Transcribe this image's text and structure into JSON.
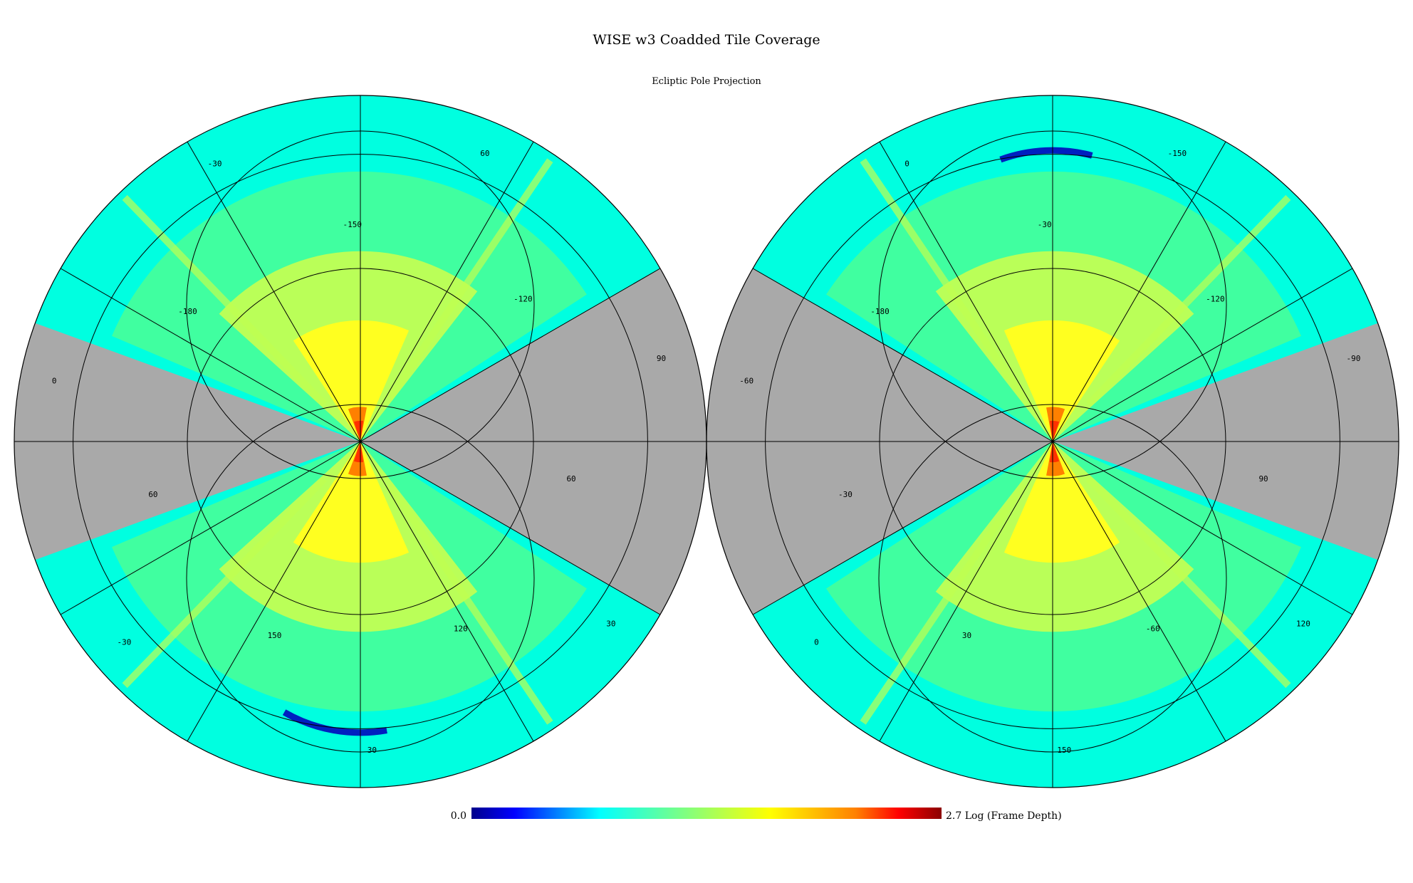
{
  "chart_data": {
    "type": "heatmap",
    "title": "WISE w3 Coadded Tile Coverage",
    "subtitle": "Ecliptic Pole Projection",
    "colorbar": {
      "min_label": "0.0",
      "max_label": "2.7 Log (Frame Depth)",
      "min": 0.0,
      "max": 2.7,
      "colors": [
        "#00008b",
        "#0000ff",
        "#0080ff",
        "#00ffff",
        "#40ffc0",
        "#80ff80",
        "#c0ff40",
        "#ffff00",
        "#ffc000",
        "#ff8000",
        "#ff0000",
        "#8b0000"
      ]
    },
    "colors": {
      "no_coverage": "#a9a9a9",
      "low": "#00ffe0",
      "mid": "#40ffa0",
      "high": "#ffff20",
      "peak": "#ff8000",
      "max": "#ff3000",
      "grid": "#000000"
    },
    "hemispheres": [
      {
        "name": "left",
        "grid_labels": [
          "90",
          "-120",
          "60",
          "-150",
          "-30",
          "-180",
          "0",
          "60",
          "-30",
          "150",
          "30",
          "120",
          "30",
          "60"
        ],
        "coverage": [
          {
            "start_deg": 30,
            "end_deg": 160,
            "level": "north"
          },
          {
            "start_deg": -160,
            "end_deg": -30,
            "level": "south"
          }
        ]
      },
      {
        "name": "right",
        "grid_labels": [
          "-90",
          "-120",
          "-150",
          "-30",
          "0",
          "-180",
          "-60",
          "-30",
          "0",
          "30",
          "150",
          "-60",
          "120",
          "90"
        ],
        "coverage": [
          {
            "start_deg": 20,
            "end_deg": 150,
            "level": "north"
          },
          {
            "start_deg": -150,
            "end_deg": -20,
            "level": "south"
          }
        ]
      }
    ]
  }
}
